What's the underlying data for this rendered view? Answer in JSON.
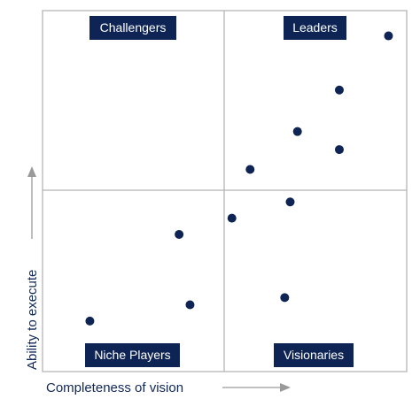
{
  "chart_data": {
    "type": "scatter",
    "xlabel": "Completeness of vision",
    "ylabel": "Ability to execute",
    "xlim": [
      0,
      1
    ],
    "ylim": [
      0,
      1
    ],
    "quadrants": {
      "top_left": "Challengers",
      "top_right": "Leaders",
      "bottom_left": "Niche Players",
      "bottom_right": "Visionaries"
    },
    "points": [
      {
        "x": 0.95,
        "y": 0.93
      },
      {
        "x": 0.815,
        "y": 0.78
      },
      {
        "x": 0.7,
        "y": 0.665
      },
      {
        "x": 0.815,
        "y": 0.615
      },
      {
        "x": 0.57,
        "y": 0.56
      },
      {
        "x": 0.52,
        "y": 0.425
      },
      {
        "x": 0.68,
        "y": 0.47
      },
      {
        "x": 0.375,
        "y": 0.38
      },
      {
        "x": 0.665,
        "y": 0.205
      },
      {
        "x": 0.405,
        "y": 0.185
      },
      {
        "x": 0.13,
        "y": 0.14
      }
    ],
    "grid": false
  },
  "colors": {
    "marker": "#0d2454",
    "label_bg": "#0d2454",
    "border": "#b5b5b5",
    "arrow": "#9a9a9a",
    "axis_text": "#10285a"
  }
}
